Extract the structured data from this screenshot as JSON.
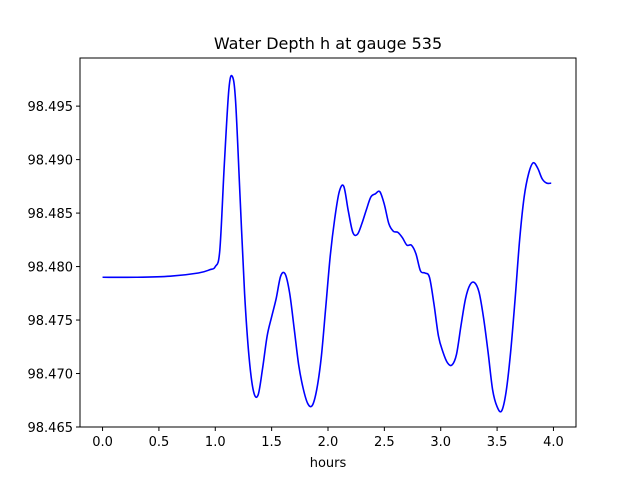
{
  "chart_data": {
    "type": "line",
    "title": "Water Depth h at gauge 535",
    "xlabel": "hours",
    "ylabel": "",
    "xlim": [
      -0.2,
      4.2
    ],
    "ylim": [
      98.465,
      98.4995
    ],
    "grid": false,
    "legend": "none",
    "line_color": "#0000ff",
    "xticks": [
      0.0,
      0.5,
      1.0,
      1.5,
      2.0,
      2.5,
      3.0,
      3.5,
      4.0
    ],
    "xtick_labels": [
      "0.0",
      "0.5",
      "1.0",
      "1.5",
      "2.0",
      "2.5",
      "3.0",
      "3.5",
      "4.0"
    ],
    "yticks": [
      98.465,
      98.47,
      98.475,
      98.48,
      98.485,
      98.49,
      98.495
    ],
    "ytick_labels": [
      "98.465",
      "98.470",
      "98.475",
      "98.480",
      "98.485",
      "98.490",
      "98.495"
    ],
    "series": [
      {
        "x": [
          0.0,
          0.3,
          0.6,
          0.85,
          0.95,
          1.0,
          1.04,
          1.08,
          1.12,
          1.15,
          1.18,
          1.22,
          1.26,
          1.3,
          1.34,
          1.38,
          1.42,
          1.46,
          1.5,
          1.54,
          1.58,
          1.62,
          1.66,
          1.7,
          1.74,
          1.78,
          1.82,
          1.86,
          1.9,
          1.94,
          1.98,
          2.02,
          2.06,
          2.1,
          2.14,
          2.18,
          2.22,
          2.26,
          2.3,
          2.34,
          2.38,
          2.42,
          2.46,
          2.5,
          2.54,
          2.58,
          2.62,
          2.66,
          2.7,
          2.74,
          2.78,
          2.82,
          2.86,
          2.9,
          2.94,
          2.98,
          3.02,
          3.06,
          3.1,
          3.14,
          3.18,
          3.22,
          3.26,
          3.3,
          3.34,
          3.38,
          3.42,
          3.46,
          3.5,
          3.54,
          3.58,
          3.62,
          3.66,
          3.7,
          3.74,
          3.78,
          3.82,
          3.86,
          3.9,
          3.94,
          3.98
        ],
        "y": [
          98.479,
          98.479,
          98.4791,
          98.4794,
          98.4797,
          98.48,
          98.4815,
          98.4895,
          98.4965,
          98.4978,
          98.4955,
          98.4865,
          98.4775,
          98.4715,
          98.4683,
          98.468,
          98.4705,
          98.4735,
          98.4753,
          98.477,
          98.4791,
          98.4793,
          98.4775,
          98.4742,
          98.4708,
          98.4686,
          98.4672,
          98.467,
          98.4685,
          98.4715,
          98.4762,
          98.481,
          98.4845,
          98.487,
          98.4875,
          98.4852,
          98.4832,
          98.483,
          98.484,
          98.4853,
          98.4865,
          98.4868,
          98.487,
          98.4858,
          98.484,
          98.4833,
          98.4832,
          98.4827,
          98.482,
          98.482,
          98.4812,
          98.4796,
          98.4794,
          98.479,
          98.4765,
          98.4735,
          98.472,
          98.471,
          98.4708,
          98.4718,
          98.4745,
          98.477,
          98.4783,
          98.4785,
          98.4776,
          98.4752,
          98.472,
          98.4685,
          98.4669,
          98.4665,
          98.4683,
          98.472,
          98.477,
          98.4825,
          98.4865,
          98.4887,
          98.4897,
          98.4892,
          98.4882,
          98.4878,
          98.4878
        ]
      }
    ]
  }
}
